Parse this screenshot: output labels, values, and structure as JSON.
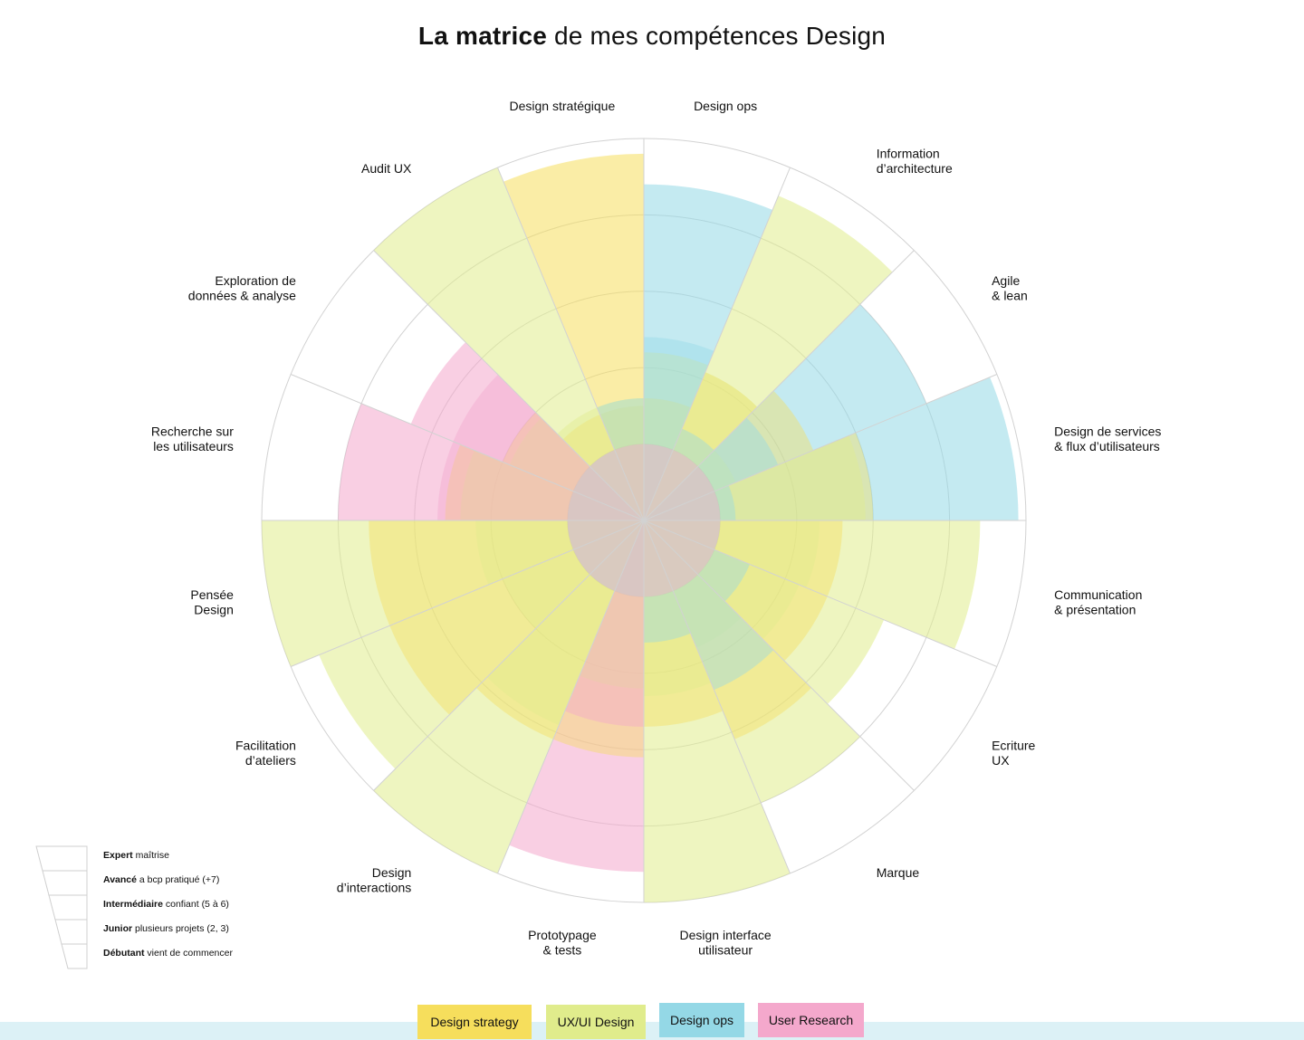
{
  "title": {
    "bold": "La matrice",
    "rest": "de mes compétences Design"
  },
  "colors": {
    "design_strategy": "#f6de5c",
    "uxui_design": "#e0ec8c",
    "design_ops": "#94d8e6",
    "user_research": "#f4a8cc",
    "gridline": "#d2d2d2"
  },
  "chart_data": {
    "type": "polar-area",
    "scale_max": 5,
    "levels": [
      {
        "value": 5,
        "name": "Expert",
        "desc": "maîtrise"
      },
      {
        "value": 4,
        "name": "Avancé",
        "desc": "a bcp pratiqué (+7)"
      },
      {
        "value": 3,
        "name": "Intermédiaire",
        "desc": "confiant (5 à 6)"
      },
      {
        "value": 2,
        "name": "Junior",
        "desc": "plusieurs projets (2, 3)"
      },
      {
        "value": 1,
        "name": "Débutant",
        "desc": "vient de commencer"
      }
    ],
    "categories": [
      {
        "label": "Design ops",
        "lines": [
          "Design ops"
        ],
        "series": "Design ops",
        "value": 4.4
      },
      {
        "label": "Information d'architecture",
        "lines": [
          "Information",
          "d’architecture"
        ],
        "series": "UX/UI Design",
        "value": 4.6
      },
      {
        "label": "Agile & lean",
        "lines": [
          "Agile",
          "& lean"
        ],
        "series": "Design ops",
        "value": 4.0
      },
      {
        "label": "Design de services & flux d'utilisateurs",
        "lines": [
          "Design de services",
          "& flux d’utilisateurs"
        ],
        "series": "Design ops",
        "value": 4.9
      },
      {
        "label": "Communication & présentation",
        "lines": [
          "Communication",
          "& présentation"
        ],
        "series": "UX/UI Design",
        "value": 4.4
      },
      {
        "label": "Ecriture UX",
        "lines": [
          "Ecriture",
          "UX"
        ],
        "series": "UX/UI Design",
        "value": 3.4
      },
      {
        "label": "Marque",
        "lines": [
          "Marque"
        ],
        "series": "UX/UI Design",
        "value": 4.0
      },
      {
        "label": "Design interface utilisateur",
        "lines": [
          "Design interface",
          "utilisateur"
        ],
        "series": "UX/UI Design",
        "value": 5.0
      },
      {
        "label": "Prototypage & tests",
        "lines": [
          "Prototypage",
          "& tests"
        ],
        "series": "User Research",
        "value": 4.6
      },
      {
        "label": "Design d'interactions",
        "lines": [
          "Design",
          "d’interactions"
        ],
        "series": "UX/UI Design",
        "value": 5.0
      },
      {
        "label": "Facilitation d'ateliers",
        "lines": [
          "Facilitation",
          "d’ateliers"
        ],
        "series": "UX/UI Design",
        "value": 4.6
      },
      {
        "label": "Pensée Design",
        "lines": [
          "Pensée",
          "Design"
        ],
        "series": "UX/UI Design",
        "value": 5.0
      },
      {
        "label": "Recherche sur les utilisateurs",
        "lines": [
          "Recherche sur",
          "les utilisateurs"
        ],
        "series": "User Research",
        "value": 4.0
      },
      {
        "label": "Exploration de données & analyse",
        "lines": [
          "Exploration de",
          "données & analyse"
        ],
        "series": "User Research",
        "value": 3.3
      },
      {
        "label": "Audit UX",
        "lines": [
          "Audit UX"
        ],
        "series": "UX/UI Design",
        "value": 5.0
      },
      {
        "label": "Design stratégique",
        "lines": [
          "Design stratégique"
        ],
        "series": "Design strategy",
        "value": 4.8
      }
    ],
    "overlay": [
      {
        "series": "Design strategy",
        "values": [
          1.6,
          2.1,
          2.4,
          3.0,
          2.6,
          2.6,
          3.1,
          2.7,
          3.1,
          3.1,
          3.6,
          3.6,
          2.6,
          2.0,
          1.5,
          1.5
        ]
      },
      {
        "series": "UX/UI Design",
        "values": [
          2.2,
          2.1,
          1.3,
          2.9,
          2.3,
          2.2,
          1.8,
          2.3,
          2.2,
          2.9,
          2.0,
          2.2,
          2.4,
          1.9,
          1.6,
          1.6
        ]
      },
      {
        "series": "Design ops",
        "values": [
          2.4,
          1.3,
          1.9,
          1.2,
          1.0,
          1.5,
          2.4,
          1.6,
          1.0,
          1.0,
          1.0,
          1.0,
          1.0,
          1.0,
          1.0,
          1.6
        ]
      },
      {
        "series": "User Research",
        "values": [
          1.0,
          1.0,
          1.0,
          1.0,
          1.0,
          1.0,
          1.0,
          1.0,
          2.7,
          1.0,
          1.0,
          1.0,
          2.7,
          2.7,
          1.0,
          1.0
        ]
      }
    ],
    "series": [
      {
        "name": "Design strategy",
        "color": "#f6de5c"
      },
      {
        "name": "UX/UI Design",
        "color": "#e0ec8c"
      },
      {
        "name": "Design ops",
        "color": "#94d8e6"
      },
      {
        "name": "User Research",
        "color": "#f4a8cc"
      }
    ],
    "grid": true,
    "legend_position": "bottom-center"
  }
}
